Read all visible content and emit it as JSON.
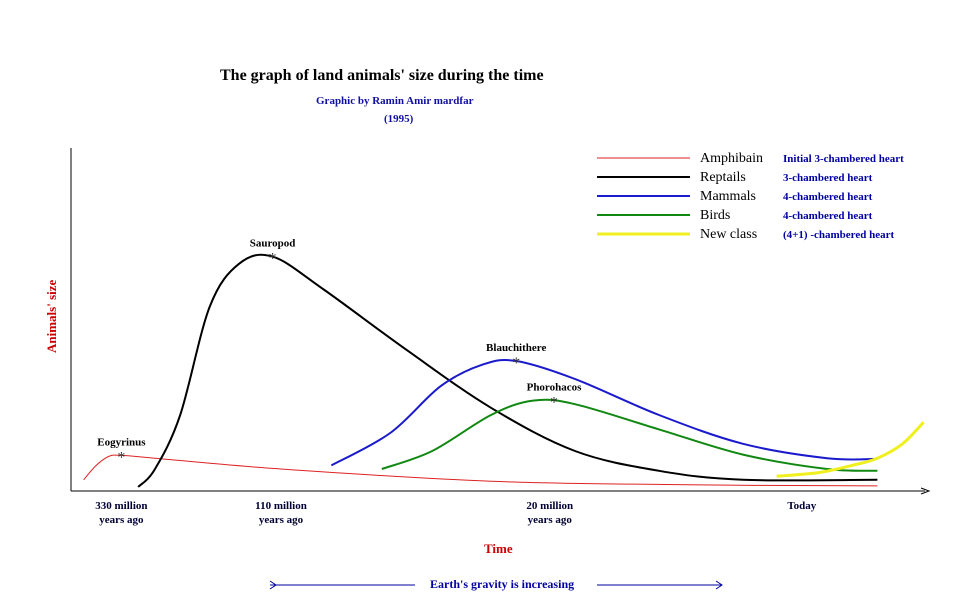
{
  "chart_data": {
    "type": "line",
    "title": "The graph of land animals' size during the time",
    "subtitle": "Graphic by Ramin Amir mardfar",
    "subtitle_year": "(1995)",
    "xlabel": "Time",
    "ylabel": "Animals' size",
    "grid": false,
    "legend_position": "top-right",
    "x_ticks": [
      {
        "t": 0.06,
        "line1": "330 million",
        "line2": "years ago"
      },
      {
        "t": 0.25,
        "line1": "110 million",
        "line2": "years ago"
      },
      {
        "t": 0.57,
        "line1": "20 million",
        "line2": "years ago"
      },
      {
        "t": 0.87,
        "line1": "Today",
        "line2": ""
      }
    ],
    "series": [
      {
        "name": "Amphibain",
        "note": "Initial 3-chambered heart",
        "color": "#dd2222",
        "width": 1,
        "points": [
          [
            0.015,
            0.02
          ],
          [
            0.03,
            0.06
          ],
          [
            0.045,
            0.085
          ],
          [
            0.06,
            0.088
          ],
          [
            0.1,
            0.08
          ],
          [
            0.25,
            0.05
          ],
          [
            0.5,
            0.016
          ],
          [
            0.75,
            0.006
          ],
          [
            0.96,
            0.003
          ]
        ]
      },
      {
        "name": "Reptails",
        "note": "3-chambered heart",
        "color": "#000000",
        "width": 2,
        "points": [
          [
            0.08,
            0.0
          ],
          [
            0.1,
            0.05
          ],
          [
            0.13,
            0.2
          ],
          [
            0.165,
            0.5
          ],
          [
            0.2,
            0.62
          ],
          [
            0.24,
            0.64
          ],
          [
            0.3,
            0.55
          ],
          [
            0.4,
            0.38
          ],
          [
            0.5,
            0.22
          ],
          [
            0.6,
            0.1
          ],
          [
            0.7,
            0.045
          ],
          [
            0.8,
            0.02
          ],
          [
            0.96,
            0.02
          ]
        ]
      },
      {
        "name": "Mammals",
        "note": "4-chambered heart",
        "color": "#1a1acc",
        "width": 2,
        "points": [
          [
            0.31,
            0.06
          ],
          [
            0.38,
            0.15
          ],
          [
            0.44,
            0.28
          ],
          [
            0.49,
            0.34
          ],
          [
            0.53,
            0.35
          ],
          [
            0.6,
            0.3
          ],
          [
            0.7,
            0.2
          ],
          [
            0.8,
            0.12
          ],
          [
            0.9,
            0.08
          ],
          [
            0.96,
            0.078
          ]
        ]
      },
      {
        "name": "Birds",
        "note": "4-chambered heart",
        "color": "#118811",
        "width": 2,
        "points": [
          [
            0.37,
            0.05
          ],
          [
            0.43,
            0.1
          ],
          [
            0.5,
            0.2
          ],
          [
            0.55,
            0.24
          ],
          [
            0.6,
            0.23
          ],
          [
            0.7,
            0.16
          ],
          [
            0.8,
            0.09
          ],
          [
            0.9,
            0.05
          ],
          [
            0.96,
            0.045
          ]
        ]
      },
      {
        "name": "New class",
        "note": "(4+1) -chambered heart",
        "color": "#f0f020",
        "width": 3,
        "points": [
          [
            0.84,
            0.03
          ],
          [
            0.89,
            0.04
          ],
          [
            0.93,
            0.06
          ],
          [
            0.96,
            0.08
          ],
          [
            0.99,
            0.12
          ],
          [
            1.015,
            0.18
          ]
        ]
      }
    ],
    "annotations": [
      {
        "text": "Eogyrinus",
        "series": 0,
        "t": 0.06,
        "v": 0.088
      },
      {
        "text": "Sauropod",
        "series": 1,
        "t": 0.24,
        "v": 0.64
      },
      {
        "text": "Blauchithere",
        "series": 2,
        "t": 0.53,
        "v": 0.35
      },
      {
        "text": "Phorohacos",
        "series": 3,
        "t": 0.575,
        "v": 0.24
      }
    ],
    "footer_note": "Earth's gravity is increasing"
  }
}
